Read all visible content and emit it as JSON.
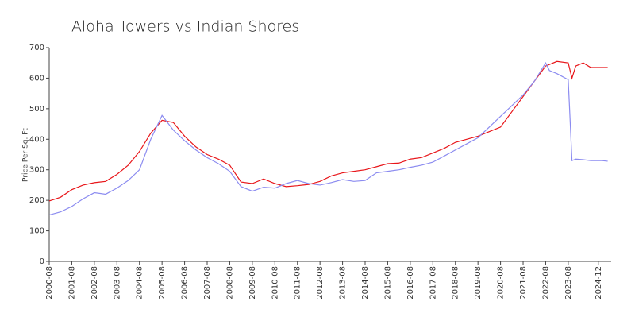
{
  "chart_data": {
    "type": "line",
    "title": "Aloha Towers vs Indian Shores",
    "y_label": "Price Per Sq. Ft",
    "x": [
      "2000-08",
      "2001-02",
      "2001-08",
      "2002-02",
      "2002-08",
      "2003-02",
      "2003-08",
      "2004-02",
      "2004-08",
      "2005-02",
      "2005-08",
      "2006-02",
      "2006-08",
      "2007-02",
      "2007-08",
      "2008-02",
      "2008-08",
      "2009-02",
      "2009-08",
      "2010-02",
      "2010-08",
      "2011-02",
      "2011-08",
      "2012-02",
      "2012-08",
      "2013-02",
      "2013-08",
      "2014-02",
      "2014-08",
      "2015-02",
      "2015-08",
      "2016-02",
      "2016-08",
      "2017-02",
      "2017-08",
      "2018-02",
      "2018-08",
      "2019-02",
      "2019-08",
      "2020-02",
      "2020-08",
      "2021-02",
      "2021-08",
      "2022-02",
      "2022-08",
      "2022-10",
      "2023-02",
      "2023-08",
      "2023-10",
      "2023-12",
      "2024-04",
      "2024-08",
      "2025-02",
      "2025-05"
    ],
    "series": [
      {
        "color": "#e8161a",
        "values": [
          198,
          210,
          235,
          250,
          258,
          262,
          285,
          315,
          360,
          420,
          462,
          455,
          410,
          375,
          350,
          335,
          315,
          260,
          255,
          270,
          255,
          245,
          248,
          252,
          262,
          280,
          290,
          295,
          300,
          310,
          320,
          322,
          335,
          340,
          355,
          370,
          390,
          400,
          410,
          425,
          440,
          490,
          540,
          590,
          640,
          645,
          655,
          650,
          600,
          640,
          650,
          635,
          635,
          635
        ]
      },
      {
        "color": "#8c8cf0",
        "values": [
          152,
          162,
          180,
          205,
          225,
          220,
          240,
          265,
          300,
          400,
          478,
          430,
          395,
          365,
          340,
          320,
          295,
          245,
          230,
          243,
          240,
          255,
          265,
          255,
          250,
          258,
          268,
          262,
          265,
          290,
          295,
          300,
          308,
          315,
          325,
          345,
          365,
          385,
          405,
          440,
          475,
          510,
          545,
          590,
          650,
          625,
          615,
          595,
          330,
          335,
          333,
          330,
          330,
          328
        ]
      }
    ],
    "xticks": [
      "2000-08",
      "2001-08",
      "2002-08",
      "2003-08",
      "2004-08",
      "2005-08",
      "2006-08",
      "2007-08",
      "2008-08",
      "2009-08",
      "2010-08",
      "2011-08",
      "2012-08",
      "2013-08",
      "2014-08",
      "2015-08",
      "2016-08",
      "2017-08",
      "2018-08",
      "2019-08",
      "2020-08",
      "2021-08",
      "2022-08",
      "2023-08",
      "2024-12"
    ],
    "xlim": [
      "2000-08",
      "2025-06"
    ],
    "ylim": [
      0,
      700
    ],
    "yticks": [
      0,
      100,
      200,
      300,
      400,
      500,
      600,
      700
    ],
    "grid": false
  }
}
